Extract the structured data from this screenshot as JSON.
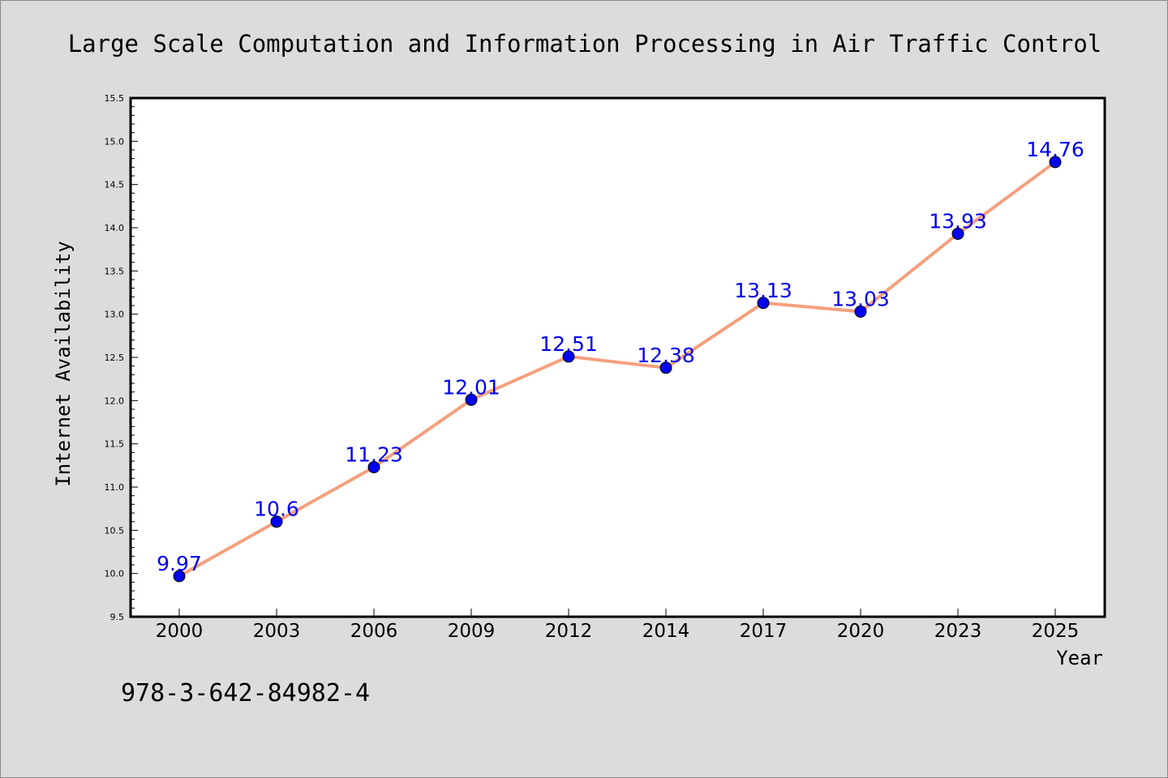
{
  "chart_data": {
    "type": "line",
    "title": "Large Scale Computation and Information Processing in Air Traffic Control",
    "xlabel": "Year",
    "ylabel": "Internet Availability",
    "categories": [
      "2000",
      "2003",
      "2006",
      "2009",
      "2012",
      "2014",
      "2017",
      "2020",
      "2023",
      "2025"
    ],
    "series": [
      {
        "values": [
          9.97,
          10.6,
          11.23,
          12.01,
          12.51,
          12.38,
          13.13,
          13.03,
          13.93,
          14.76
        ],
        "labels": [
          "9.97",
          "10.6",
          "11.23",
          "12.01",
          "12.51",
          "12.38",
          "13.13",
          "13.03",
          "13.93",
          "14.76"
        ],
        "line_color": "#f4a07e",
        "marker_color": "#0000ee",
        "label_color": "#0000ee"
      }
    ],
    "ylim": [
      9.5,
      15.5
    ],
    "yticks": [
      "9.5",
      "10.0",
      "10.5",
      "11.0",
      "11.5",
      "12.0",
      "12.5",
      "13.0",
      "13.5",
      "14.0",
      "14.5",
      "15.0",
      "15.5"
    ],
    "grid": false,
    "legend": "none",
    "background_color": "#dcdcdc",
    "plot_background_color": "#ffffff"
  },
  "footnote": "978-3-642-84982-4"
}
